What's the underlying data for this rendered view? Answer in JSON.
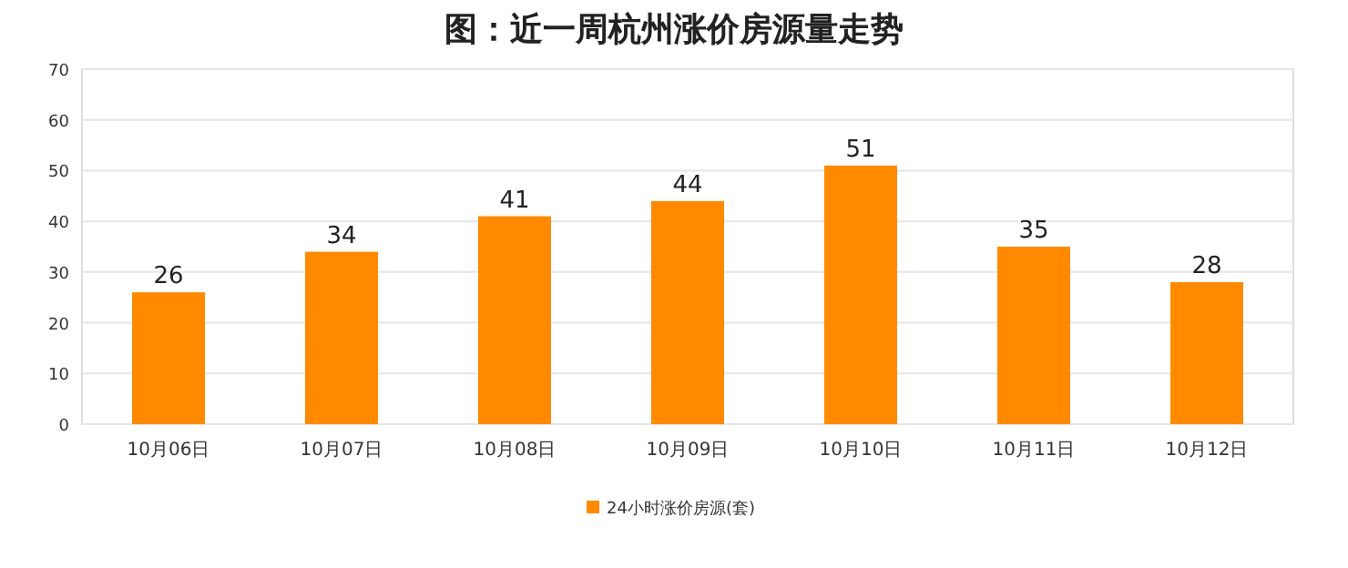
{
  "chart_data": {
    "type": "bar",
    "title": "图：近一周杭州涨价房源量走势",
    "categories": [
      "10月06日",
      "10月07日",
      "10月08日",
      "10月09日",
      "10月10日",
      "10月11日",
      "10月12日"
    ],
    "series": [
      {
        "name": "24小时涨价房源(套)",
        "color": "#ff8a00",
        "values": [
          26,
          34,
          41,
          44,
          51,
          35,
          28
        ]
      }
    ],
    "ylim": [
      0,
      70
    ],
    "yticks": [
      0,
      10,
      20,
      30,
      40,
      50,
      60,
      70
    ],
    "grid": "y",
    "legend": "bottom",
    "data_labels": true
  }
}
